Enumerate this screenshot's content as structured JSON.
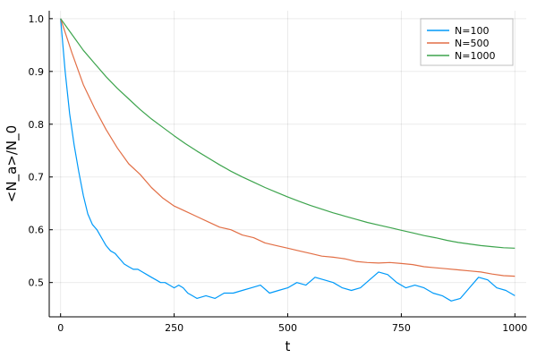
{
  "chart_data": {
    "type": "line",
    "title": "",
    "xlabel": "t",
    "ylabel": "<N_a>/N_0",
    "xlim": [
      -25,
      1025
    ],
    "ylim": [
      0.435,
      1.015
    ],
    "xticks": [
      0,
      250,
      500,
      750,
      1000
    ],
    "xtick_labels": [
      "0",
      "250",
      "500",
      "750",
      "1000"
    ],
    "yticks": [
      0.5,
      0.6,
      0.7,
      0.8,
      0.9,
      1.0
    ],
    "ytick_labels": [
      "0.5",
      "0.6",
      "0.7",
      "0.8",
      "0.9",
      "1.0"
    ],
    "grid": true,
    "legend_position": "top-right",
    "series": [
      {
        "name": "N=100",
        "color": "#009af9",
        "x": [
          0,
          10,
          20,
          30,
          40,
          50,
          60,
          70,
          80,
          90,
          100,
          110,
          120,
          130,
          140,
          150,
          160,
          170,
          180,
          190,
          200,
          210,
          220,
          230,
          240,
          250,
          260,
          270,
          280,
          290,
          300,
          320,
          340,
          360,
          380,
          400,
          420,
          440,
          460,
          480,
          500,
          520,
          540,
          560,
          580,
          600,
          620,
          640,
          660,
          680,
          700,
          720,
          740,
          760,
          780,
          800,
          820,
          840,
          860,
          880,
          900,
          920,
          940,
          960,
          980,
          1000
        ],
        "y": [
          1.0,
          0.9,
          0.82,
          0.76,
          0.71,
          0.665,
          0.63,
          0.61,
          0.6,
          0.585,
          0.57,
          0.56,
          0.555,
          0.545,
          0.535,
          0.53,
          0.525,
          0.525,
          0.52,
          0.515,
          0.51,
          0.505,
          0.5,
          0.5,
          0.495,
          0.49,
          0.495,
          0.49,
          0.48,
          0.475,
          0.47,
          0.475,
          0.47,
          0.48,
          0.48,
          0.485,
          0.49,
          0.495,
          0.48,
          0.485,
          0.49,
          0.5,
          0.495,
          0.51,
          0.505,
          0.5,
          0.49,
          0.485,
          0.49,
          0.505,
          0.52,
          0.515,
          0.5,
          0.49,
          0.495,
          0.49,
          0.48,
          0.475,
          0.465,
          0.47,
          0.49,
          0.51,
          0.505,
          0.49,
          0.485,
          0.475
        ]
      },
      {
        "name": "N=500",
        "color": "#e26f46",
        "x": [
          0,
          25,
          50,
          75,
          100,
          125,
          150,
          175,
          200,
          225,
          250,
          275,
          300,
          325,
          350,
          375,
          400,
          425,
          450,
          475,
          500,
          525,
          550,
          575,
          600,
          625,
          650,
          675,
          700,
          725,
          750,
          775,
          800,
          825,
          850,
          875,
          900,
          925,
          950,
          975,
          1000
        ],
        "y": [
          1.0,
          0.935,
          0.875,
          0.83,
          0.79,
          0.755,
          0.725,
          0.705,
          0.68,
          0.66,
          0.645,
          0.635,
          0.625,
          0.615,
          0.605,
          0.6,
          0.59,
          0.585,
          0.575,
          0.57,
          0.565,
          0.56,
          0.555,
          0.55,
          0.548,
          0.545,
          0.54,
          0.538,
          0.537,
          0.538,
          0.536,
          0.534,
          0.53,
          0.528,
          0.526,
          0.524,
          0.522,
          0.52,
          0.516,
          0.513,
          0.512
        ]
      },
      {
        "name": "N=1000",
        "color": "#3da44d",
        "x": [
          0,
          25,
          50,
          75,
          100,
          125,
          150,
          175,
          200,
          225,
          250,
          275,
          300,
          325,
          350,
          375,
          400,
          425,
          450,
          475,
          500,
          525,
          550,
          575,
          600,
          625,
          650,
          675,
          700,
          725,
          750,
          775,
          800,
          825,
          850,
          875,
          900,
          925,
          950,
          975,
          1000
        ],
        "y": [
          1.0,
          0.97,
          0.94,
          0.915,
          0.89,
          0.868,
          0.848,
          0.828,
          0.81,
          0.794,
          0.778,
          0.763,
          0.749,
          0.736,
          0.723,
          0.711,
          0.7,
          0.69,
          0.68,
          0.671,
          0.662,
          0.654,
          0.646,
          0.639,
          0.632,
          0.626,
          0.62,
          0.614,
          0.609,
          0.604,
          0.599,
          0.594,
          0.589,
          0.585,
          0.58,
          0.576,
          0.573,
          0.57,
          0.568,
          0.566,
          0.565
        ]
      }
    ]
  }
}
